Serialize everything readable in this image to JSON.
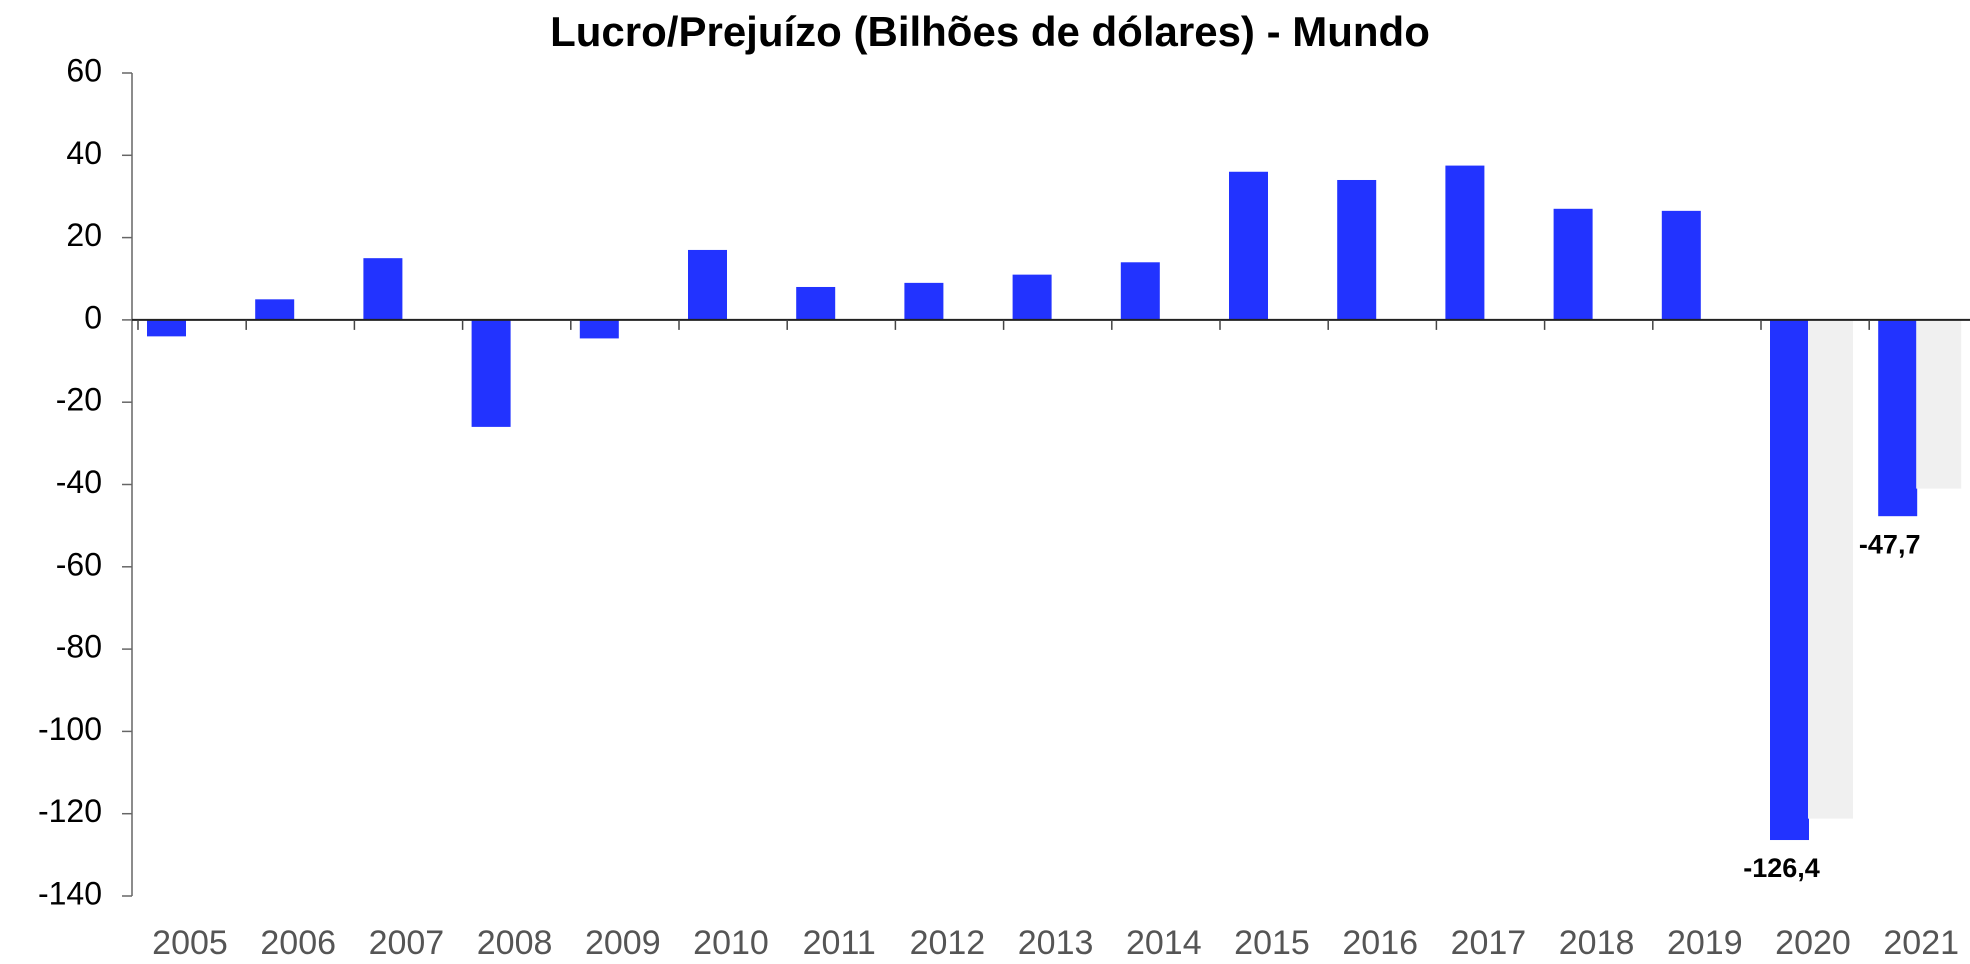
{
  "chart_data": {
    "type": "bar",
    "title": "Lucro/Prejuízo (Bilhões de dólares) - Mundo",
    "categories": [
      "2005",
      "2006",
      "2007",
      "2008",
      "2009",
      "2010",
      "2011",
      "2012",
      "2013",
      "2014",
      "2015",
      "2016",
      "2017",
      "2018",
      "2019",
      "2020",
      "2021"
    ],
    "series": [
      {
        "color": "#2233ff",
        "values": [
          -4,
          5,
          15,
          -26,
          -4.5,
          17,
          8,
          9,
          11,
          14,
          36,
          34,
          37.5,
          27,
          26.5,
          -126.4,
          -47.7
        ],
        "value_labels": [
          null,
          null,
          null,
          null,
          null,
          null,
          null,
          null,
          null,
          null,
          null,
          null,
          null,
          null,
          null,
          "-126,4",
          "-47,7"
        ]
      },
      {
        "color": "#f0f0f0",
        "values": [
          null,
          null,
          null,
          null,
          null,
          null,
          null,
          null,
          null,
          null,
          null,
          null,
          null,
          null,
          null,
          -121.2,
          -41
        ]
      }
    ],
    "ylim": [
      -140,
      60
    ],
    "yticks": [
      60,
      40,
      20,
      0,
      -20,
      -40,
      -60,
      -80,
      -100,
      -120,
      -140
    ],
    "grid": false
  }
}
